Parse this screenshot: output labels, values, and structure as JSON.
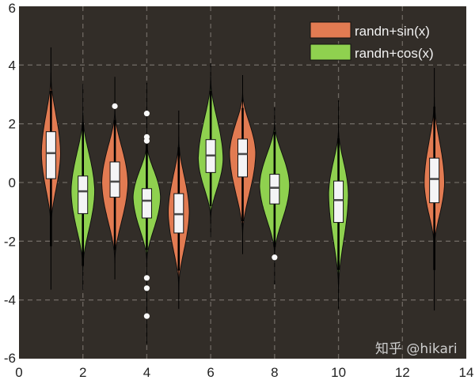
{
  "chart_data": {
    "type": "violin",
    "title": "",
    "xlabel": "",
    "ylabel": "",
    "xlim": [
      0,
      14
    ],
    "ylim": [
      -6,
      6
    ],
    "xticks": [
      0,
      2,
      4,
      6,
      8,
      10,
      12,
      14
    ],
    "yticks": [
      -6,
      -4,
      -2,
      0,
      2,
      4,
      6
    ],
    "xtick_labels": [
      "0",
      "2",
      "4",
      "6",
      "8",
      "10",
      "12",
      "14"
    ],
    "ytick_labels": [
      "-6",
      "-4",
      "-2",
      "0",
      "2",
      "4",
      "6"
    ],
    "grid": true,
    "legend_position": "top-right",
    "colors": {
      "background": "#322d28",
      "grid": "#6e6862",
      "randn+sin(x)": "#e27b52",
      "randn+cos(x)": "#8fd14f",
      "box": "#f4f4f6",
      "median": "#4a4a4a"
    },
    "series": [
      {
        "name": "randn+sin(x)",
        "violins": [
          {
            "x": 1,
            "q1": 0.13,
            "median": 1.0,
            "q3": 1.73,
            "whisker_low": -2.17,
            "whisker_high": 3.12,
            "kde_min": -1.6,
            "kde_max": 3.75,
            "data_min": -3.65,
            "data_max": 4.6,
            "peak": 1.0,
            "half_width": 0.3,
            "outliers": []
          },
          {
            "x": 3,
            "q1": -0.5,
            "median": 0.03,
            "q3": 0.7,
            "whisker_low": -2.3,
            "whisker_high": 2.13,
            "kde_min": -2.75,
            "kde_max": 2.54,
            "data_min": -3.3,
            "data_max": 3.6,
            "peak": 0.0,
            "half_width": 0.41,
            "outliers": [
              2.6
            ]
          },
          {
            "x": 5,
            "q1": -1.72,
            "median": -1.08,
            "q3": -0.38,
            "whisker_low": -3.0,
            "whisker_high": 1.2,
            "kde_min": -3.65,
            "kde_max": 1.55,
            "data_min": -4.3,
            "data_max": 2.45,
            "peak": -1.0,
            "half_width": 0.33,
            "outliers": []
          },
          {
            "x": 7,
            "q1": 0.19,
            "median": 0.97,
            "q3": 1.48,
            "whisker_low": -1.32,
            "whisker_high": 2.54,
            "kde_min": -1.86,
            "kde_max": 3.12,
            "data_min": -2.44,
            "data_max": 3.66,
            "peak": 1.0,
            "half_width": 0.41,
            "outliers": []
          },
          {
            "x": 13,
            "q1": -0.69,
            "median": 0.12,
            "q3": 0.83,
            "whisker_low": -2.98,
            "whisker_high": 2.58,
            "kde_min": -2.3,
            "kde_max": 2.9,
            "data_min": -4.36,
            "data_max": 3.9,
            "peak": 0.0,
            "half_width": 0.32,
            "outliers": []
          }
        ]
      },
      {
        "name": "randn+cos(x)",
        "violins": [
          {
            "x": 2,
            "q1": -1.06,
            "median": -0.3,
            "q3": 0.22,
            "whisker_low": -2.84,
            "whisker_high": 2.04,
            "kde_min": -3.0,
            "kde_max": 2.37,
            "data_min": -3.65,
            "data_max": 3.35,
            "peak": -0.3,
            "half_width": 0.37,
            "outliers": []
          },
          {
            "x": 4,
            "q1": -1.21,
            "median": -0.62,
            "q3": -0.21,
            "whisker_low": -2.3,
            "whisker_high": 1.35,
            "kde_min": -2.75,
            "kde_max": 1.4,
            "data_min": -5.5,
            "data_max": 3.4,
            "peak": -0.5,
            "half_width": 0.43,
            "outliers": [
              2.35,
              1.55,
              1.42,
              -3.25,
              -3.6,
              -4.55
            ]
          },
          {
            "x": 6,
            "q1": 0.34,
            "median": 0.92,
            "q3": 1.46,
            "whisker_low": -0.8,
            "whisker_high": 3.12,
            "kde_min": -1.28,
            "kde_max": 3.62,
            "data_min": -1.86,
            "data_max": 4.06,
            "peak": 0.8,
            "half_width": 0.39,
            "outliers": []
          },
          {
            "x": 8,
            "q1": -0.73,
            "median": -0.18,
            "q3": 0.28,
            "whisker_low": -2.2,
            "whisker_high": 1.73,
            "kde_min": -2.53,
            "kde_max": 2.1,
            "data_min": -3.47,
            "data_max": 2.55,
            "peak": -0.1,
            "half_width": 0.47,
            "outliers": [
              -2.55
            ]
          },
          {
            "x": 10,
            "q1": -1.36,
            "median": -0.6,
            "q3": 0.05,
            "whisker_low": -2.98,
            "whisker_high": 1.5,
            "kde_min": -3.7,
            "kde_max": 1.9,
            "data_min": -4.3,
            "data_max": 2.8,
            "peak": -0.4,
            "half_width": 0.31,
            "outliers": []
          }
        ]
      }
    ],
    "legend": [
      "randn+sin(x)",
      "randn+cos(x)"
    ]
  },
  "watermark": "知乎 @hikari"
}
